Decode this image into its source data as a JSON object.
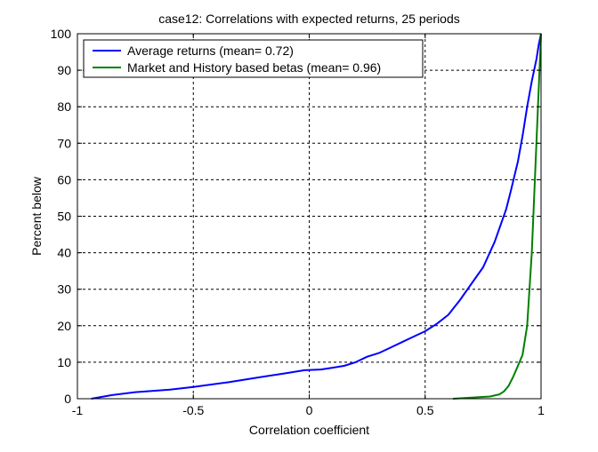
{
  "chart_data": {
    "type": "line",
    "title": "case12: Correlations with expected returns, 25 periods",
    "xlabel": "Correlation coefficient",
    "ylabel": "Percent below",
    "xlim": [
      -1,
      1
    ],
    "ylim": [
      0,
      100
    ],
    "xticks": [
      -1,
      -0.5,
      0,
      0.5,
      1
    ],
    "xtick_labels": [
      "-1",
      "-0.5",
      "0",
      "0.5",
      "1"
    ],
    "yticks": [
      0,
      10,
      20,
      30,
      40,
      50,
      60,
      70,
      80,
      90,
      100
    ],
    "ytick_labels": [
      "0",
      "10",
      "20",
      "30",
      "40",
      "50",
      "60",
      "70",
      "80",
      "90",
      "100"
    ],
    "grid": true,
    "legend_position": "top-left",
    "series": [
      {
        "name": "Average returns (mean= 0.72)",
        "color": "#0000ff",
        "x": [
          -0.94,
          -0.85,
          -0.75,
          -0.6,
          -0.5,
          -0.35,
          -0.2,
          -0.1,
          -0.02,
          0.05,
          0.1,
          0.15,
          0.2,
          0.25,
          0.3,
          0.35,
          0.4,
          0.45,
          0.5,
          0.55,
          0.6,
          0.65,
          0.7,
          0.75,
          0.8,
          0.85,
          0.87,
          0.9,
          0.92,
          0.94,
          0.96,
          0.98,
          0.99,
          1.0
        ],
        "y": [
          0,
          1,
          1.8,
          2.5,
          3.2,
          4.5,
          6,
          7,
          7.8,
          8,
          8.5,
          9,
          10,
          11.5,
          12.5,
          14,
          15.5,
          17,
          18.5,
          20.5,
          23,
          27,
          31.5,
          36,
          43,
          52,
          57,
          65,
          72,
          80,
          87,
          93,
          97,
          100
        ]
      },
      {
        "name": "Market and History based betas  (mean= 0.96)",
        "color": "#008000",
        "x": [
          0.62,
          0.7,
          0.78,
          0.82,
          0.84,
          0.86,
          0.88,
          0.9,
          0.92,
          0.94,
          0.95,
          0.96,
          0.97,
          0.98,
          0.99,
          1.0
        ],
        "y": [
          0,
          0.3,
          0.6,
          1.2,
          2,
          3.5,
          6,
          9,
          12,
          20,
          30,
          40,
          55,
          70,
          85,
          100
        ]
      }
    ]
  }
}
